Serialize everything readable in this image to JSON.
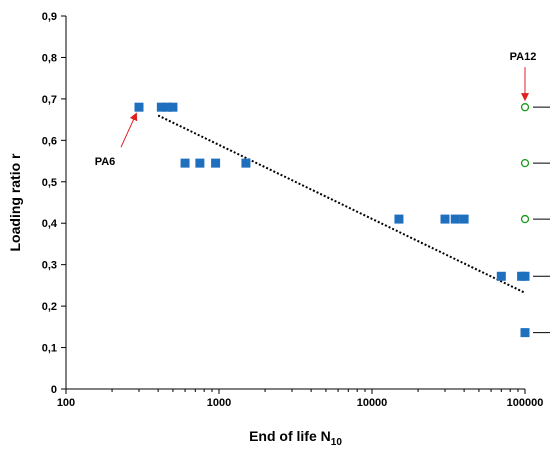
{
  "chart_data": {
    "type": "scatter",
    "xscale": "log",
    "xlim": [
      100,
      100000
    ],
    "ylim": [
      0,
      0.9
    ],
    "xlabel": "End of life N",
    "xlabel_sub": "10",
    "ylabel": "Loading ratio r",
    "x_ticks": [
      {
        "value": 100,
        "label": "100"
      },
      {
        "value": 1000,
        "label": "1000"
      },
      {
        "value": 10000,
        "label": "10000"
      },
      {
        "value": 100000,
        "label": "100000"
      }
    ],
    "y_ticks": [
      {
        "value": 0,
        "label": "0"
      },
      {
        "value": 0.1,
        "label": "0,1"
      },
      {
        "value": 0.2,
        "label": "0,2"
      },
      {
        "value": 0.3,
        "label": "0,3"
      },
      {
        "value": 0.4,
        "label": "0,4"
      },
      {
        "value": 0.5,
        "label": "0,5"
      },
      {
        "value": 0.6,
        "label": "0,6"
      },
      {
        "value": 0.7,
        "label": "0,7"
      },
      {
        "value": 0.8,
        "label": "0,8"
      },
      {
        "value": 0.9,
        "label": "0,9"
      }
    ],
    "grid": false,
    "legend": "none",
    "series": [
      {
        "marker": "filled-square",
        "color": "#1f6fbf",
        "points": [
          {
            "x": 300,
            "y": 0.68
          },
          {
            "x": 420,
            "y": 0.68
          },
          {
            "x": 460,
            "y": 0.68
          },
          {
            "x": 500,
            "y": 0.68
          },
          {
            "x": 600,
            "y": 0.545
          },
          {
            "x": 750,
            "y": 0.545
          },
          {
            "x": 950,
            "y": 0.545
          },
          {
            "x": 1500,
            "y": 0.545
          },
          {
            "x": 15000,
            "y": 0.41
          },
          {
            "x": 30000,
            "y": 0.41
          },
          {
            "x": 35000,
            "y": 0.41
          },
          {
            "x": 40000,
            "y": 0.41
          },
          {
            "x": 70000,
            "y": 0.272
          },
          {
            "x": 95000,
            "y": 0.272
          },
          {
            "x": 100000,
            "y": 0.272
          },
          {
            "x": 100000,
            "y": 0.136
          }
        ]
      },
      {
        "marker": "open-circle",
        "color": "#1a9a1a",
        "points": [
          {
            "x": 100000,
            "y": 0.68
          },
          {
            "x": 100000,
            "y": 0.545
          },
          {
            "x": 100000,
            "y": 0.41
          }
        ]
      }
    ],
    "trendline": {
      "style": "dotted",
      "color": "#000000",
      "from": {
        "x": 400,
        "y": 0.66
      },
      "to": {
        "x": 100000,
        "y": 0.232
      }
    },
    "reference_ticks": {
      "color": "#000000",
      "y_values": [
        0.68,
        0.545,
        0.41,
        0.272,
        0.136
      ]
    },
    "annotations": [
      {
        "text": "PA6",
        "arrow_color": "#e02020",
        "points_to": {
          "x": 300,
          "y": 0.68
        }
      },
      {
        "text": "PA12",
        "arrow_color": "#e02020",
        "points_to": {
          "x": 100000,
          "y": 0.68
        }
      }
    ]
  }
}
